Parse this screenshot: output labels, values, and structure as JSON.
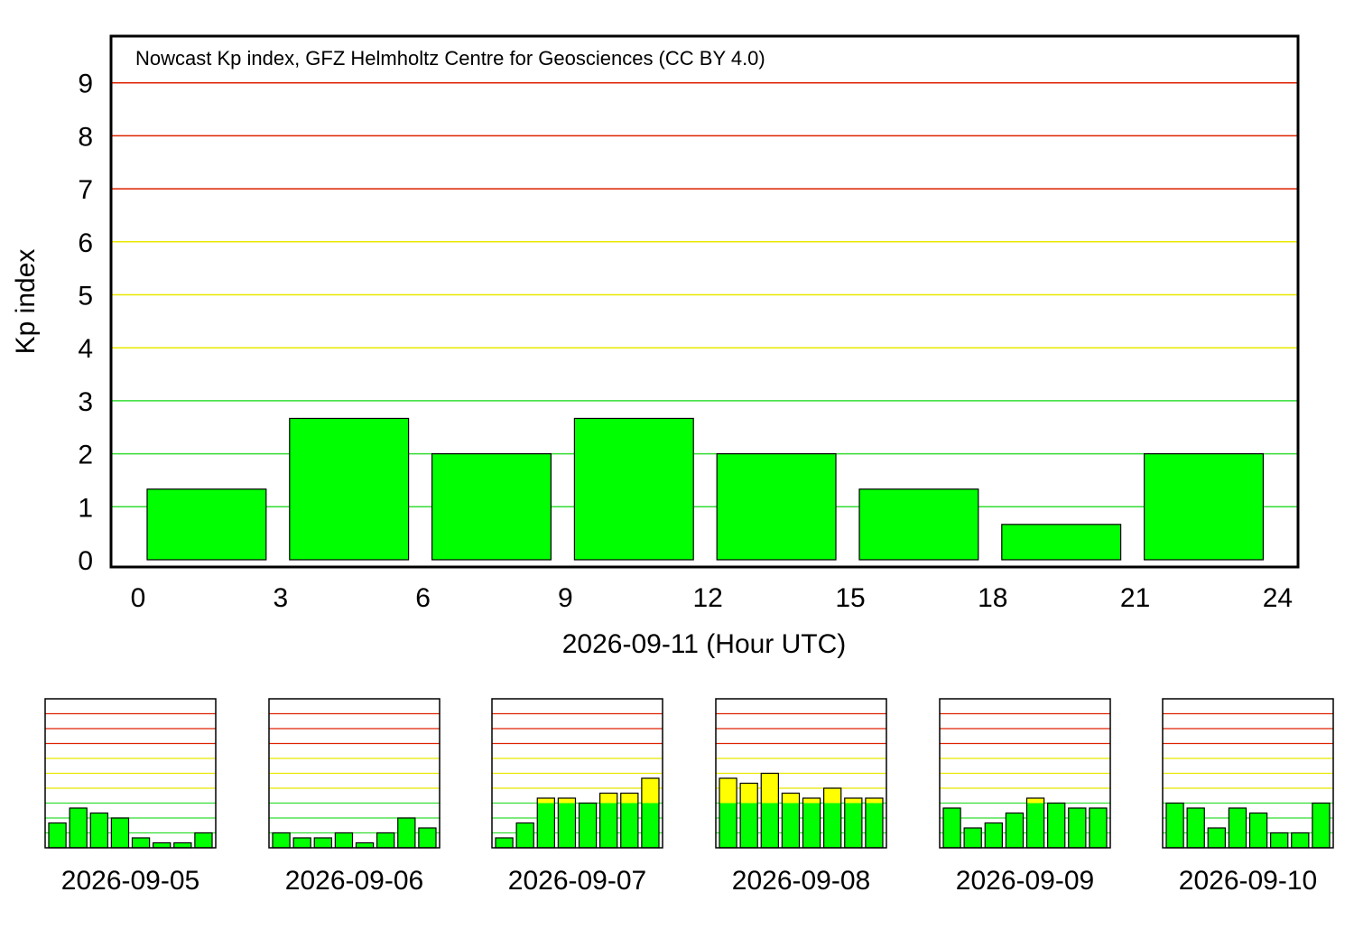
{
  "colors": {
    "bar_green": "#00ff00",
    "bar_yellow": "#ffff00",
    "grid_green": "#33dd33",
    "grid_yellow": "#e8e800",
    "grid_red": "#dd2200",
    "frame": "#000000"
  },
  "chart_data": [
    {
      "type": "bar",
      "annotation": "Nowcast Kp index, GFZ Helmholtz Centre for Geosciences (CC BY 4.0)",
      "ylabel": "Kp index",
      "xlabel": "2026-09-11 (Hour UTC)",
      "ylim": [
        0,
        9
      ],
      "yticks": [
        "0",
        "1",
        "2",
        "3",
        "4",
        "5",
        "6",
        "7",
        "8",
        "9"
      ],
      "xlim": [
        0,
        24
      ],
      "xticks": [
        "0",
        "3",
        "6",
        "9",
        "12",
        "15",
        "18",
        "21",
        "24"
      ],
      "x": [
        0,
        3,
        6,
        9,
        12,
        15,
        18,
        21
      ],
      "values": [
        1.333,
        2.667,
        2.0,
        2.667,
        2.0,
        1.333,
        0.667,
        2.0
      ],
      "grid": true,
      "grid_levels": {
        "green": [
          1,
          2,
          3
        ],
        "yellow": [
          4,
          5,
          6
        ],
        "red": [
          7,
          8,
          9
        ]
      }
    },
    {
      "type": "bar",
      "xlabel": "2026-09-05",
      "ylim": [
        0,
        9
      ],
      "values": [
        1.667,
        2.667,
        2.333,
        2.0,
        0.667,
        0.333,
        0.333,
        1.0
      ]
    },
    {
      "type": "bar",
      "xlabel": "2026-09-06",
      "ylim": [
        0,
        9
      ],
      "values": [
        1.0,
        0.667,
        0.667,
        1.0,
        0.333,
        1.0,
        2.0,
        1.333
      ]
    },
    {
      "type": "bar",
      "xlabel": "2026-09-07",
      "ylim": [
        0,
        9
      ],
      "values": [
        0.667,
        1.667,
        3.333,
        3.333,
        3.0,
        3.667,
        3.667,
        4.667
      ]
    },
    {
      "type": "bar",
      "xlabel": "2026-09-08",
      "ylim": [
        0,
        9
      ],
      "values": [
        4.667,
        4.333,
        5.0,
        3.667,
        3.333,
        4.0,
        3.333,
        3.333
      ]
    },
    {
      "type": "bar",
      "xlabel": "2026-09-09",
      "ylim": [
        0,
        9
      ],
      "values": [
        2.667,
        1.333,
        1.667,
        2.333,
        3.333,
        3.0,
        2.667,
        2.667
      ]
    },
    {
      "type": "bar",
      "xlabel": "2026-09-10",
      "ylim": [
        0,
        9
      ],
      "values": [
        3.0,
        2.667,
        1.333,
        2.667,
        2.333,
        1.0,
        1.0,
        3.0
      ]
    }
  ]
}
